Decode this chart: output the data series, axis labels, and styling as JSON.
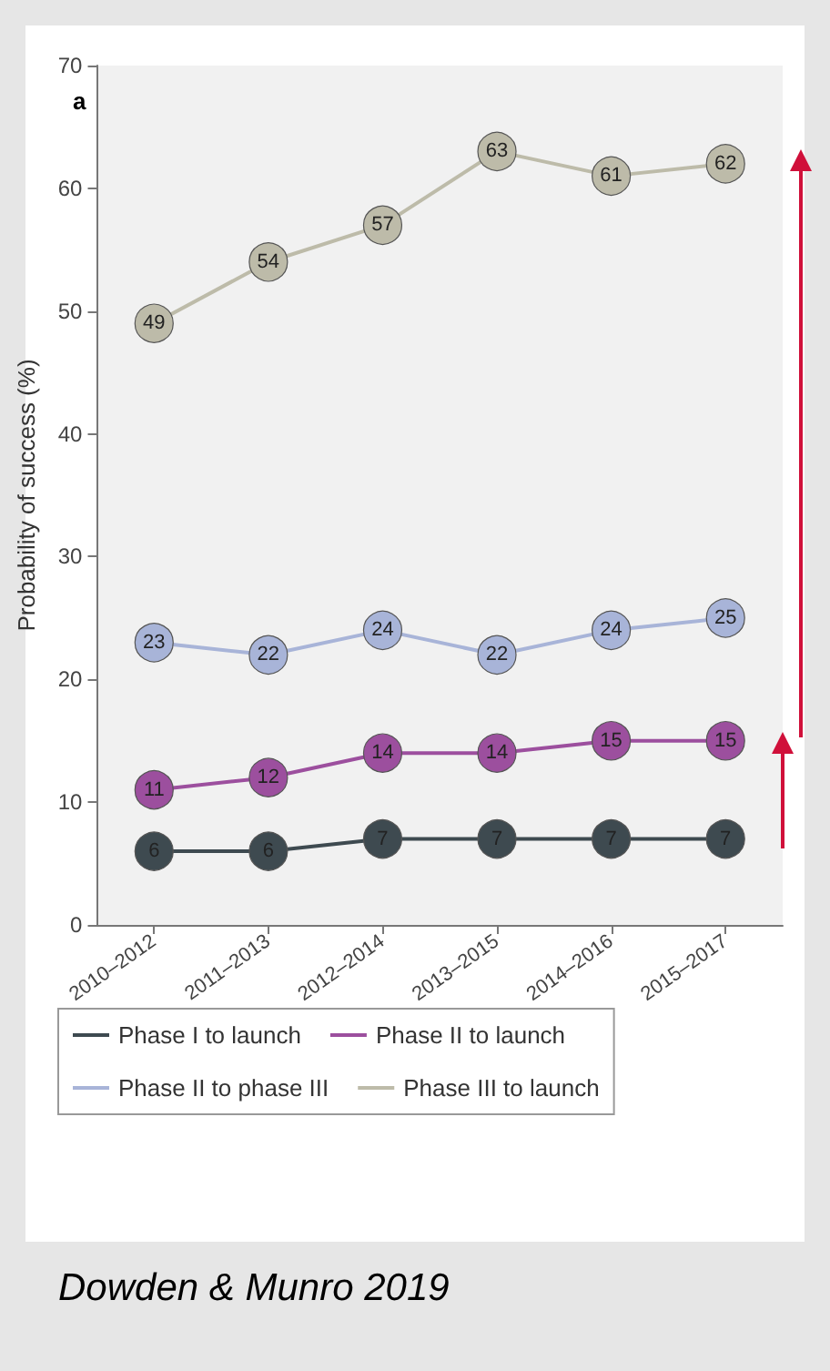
{
  "chart_data": {
    "type": "line",
    "ylabel": "Probability of success (%)",
    "categories": [
      "2010–2012",
      "2011–2013",
      "2012–2014",
      "2013–2015",
      "2014–2016",
      "2015–2017"
    ],
    "series": [
      {
        "name": "Phase I to launch",
        "color": "#3e4a50",
        "values": [
          6,
          6,
          7,
          7,
          7,
          7
        ]
      },
      {
        "name": "Phase II to launch",
        "color": "#9c4f9e",
        "values": [
          11,
          12,
          14,
          14,
          15,
          15
        ]
      },
      {
        "name": "Phase II to phase III",
        "color": "#a8b4d8",
        "values": [
          23,
          22,
          24,
          22,
          24,
          25
        ]
      },
      {
        "name": "Phase III to launch",
        "color": "#bdbba9",
        "values": [
          49,
          54,
          57,
          63,
          61,
          62
        ]
      }
    ],
    "ylim": [
      0,
      70
    ],
    "yticks": [
      0,
      10,
      20,
      30,
      40,
      50,
      60,
      70
    ],
    "grid": false,
    "legend": "bottom",
    "marker": "circle",
    "line_style": "solid",
    "data_labels": true,
    "annotations": [
      "a",
      "Dowden & Munro 2019"
    ]
  }
}
